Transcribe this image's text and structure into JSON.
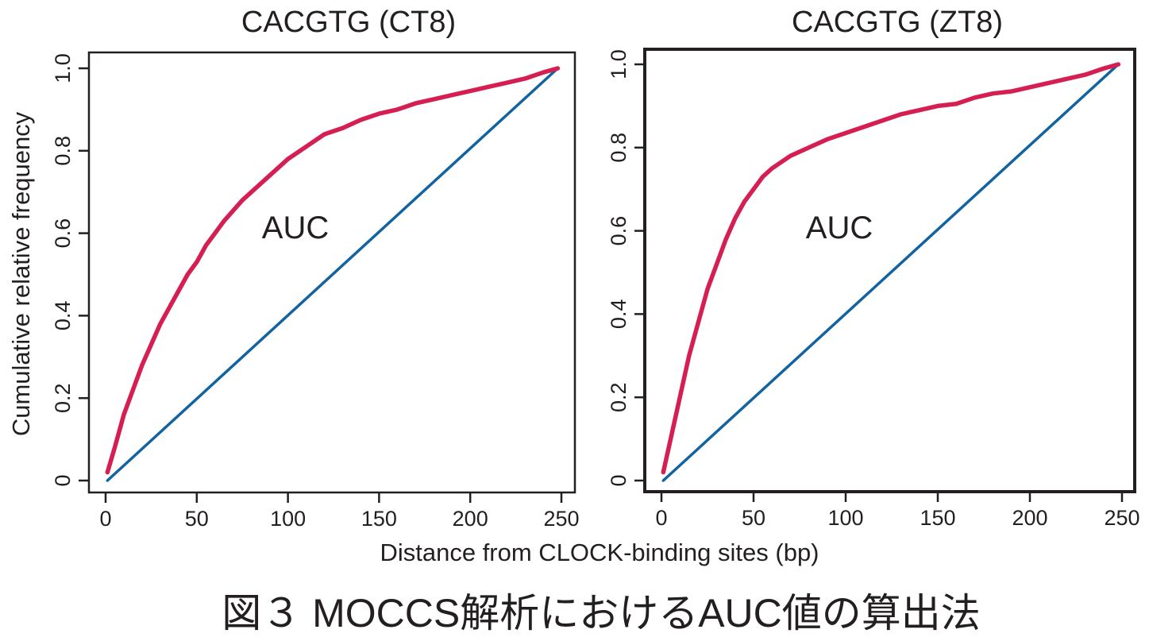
{
  "figure": {
    "xlabel": "Distance from CLOCK-binding sites (bp)",
    "ylabel": "Cumulative relative frequency",
    "caption": "図３ MOCCS解析におけるAUC値の算出法"
  },
  "colors": {
    "observed": "#d51f52",
    "reference": "#1263a0",
    "axis": "#231f20"
  },
  "chart_data": [
    {
      "type": "line",
      "title": "CACGTG (CT8)",
      "annotation": "AUC",
      "xlim": [
        0,
        250
      ],
      "ylim": [
        0,
        1
      ],
      "xticks": [
        0,
        50,
        100,
        150,
        200,
        250
      ],
      "yticks": [
        0,
        0.2,
        0.4,
        0.6,
        0.8,
        1.0
      ],
      "ytick_labels": [
        "0",
        "0.2",
        "0.4",
        "0.6",
        "0.8",
        "1.0"
      ],
      "grid": false,
      "series": [
        {
          "x": [
            1,
            5,
            10,
            15,
            20,
            25,
            30,
            35,
            40,
            45,
            50,
            55,
            60,
            65,
            70,
            75,
            80,
            85,
            90,
            95,
            100,
            110,
            120,
            130,
            140,
            150,
            160,
            170,
            180,
            190,
            200,
            210,
            220,
            230,
            240,
            248
          ],
          "y": [
            0.02,
            0.08,
            0.16,
            0.22,
            0.28,
            0.33,
            0.38,
            0.42,
            0.46,
            0.5,
            0.53,
            0.57,
            0.6,
            0.63,
            0.655,
            0.68,
            0.7,
            0.72,
            0.74,
            0.76,
            0.78,
            0.81,
            0.84,
            0.855,
            0.875,
            0.89,
            0.9,
            0.915,
            0.925,
            0.935,
            0.945,
            0.955,
            0.965,
            0.975,
            0.99,
            1.0
          ]
        },
        {
          "x": [
            1,
            248
          ],
          "y": [
            0,
            1.0
          ]
        }
      ]
    },
    {
      "type": "line",
      "title": "CACGTG (ZT8)",
      "annotation": "AUC",
      "xlim": [
        0,
        250
      ],
      "ylim": [
        0,
        1
      ],
      "xticks": [
        0,
        50,
        100,
        150,
        200,
        250
      ],
      "yticks": [
        0,
        0.2,
        0.4,
        0.6,
        0.8,
        1.0
      ],
      "ytick_labels": [
        "0",
        "0.2",
        "0.4",
        "0.6",
        "0.8",
        "1.0"
      ],
      "grid": false,
      "series": [
        {
          "x": [
            1,
            5,
            10,
            15,
            20,
            25,
            30,
            35,
            40,
            45,
            50,
            55,
            60,
            70,
            80,
            90,
            100,
            110,
            120,
            130,
            140,
            150,
            160,
            170,
            180,
            190,
            200,
            210,
            220,
            230,
            240,
            248
          ],
          "y": [
            0.02,
            0.1,
            0.2,
            0.3,
            0.38,
            0.46,
            0.52,
            0.58,
            0.63,
            0.67,
            0.7,
            0.73,
            0.75,
            0.78,
            0.8,
            0.82,
            0.835,
            0.85,
            0.865,
            0.88,
            0.89,
            0.9,
            0.905,
            0.92,
            0.93,
            0.935,
            0.945,
            0.955,
            0.965,
            0.975,
            0.99,
            1.0
          ]
        },
        {
          "x": [
            1,
            248
          ],
          "y": [
            0,
            1.0
          ]
        }
      ]
    }
  ]
}
